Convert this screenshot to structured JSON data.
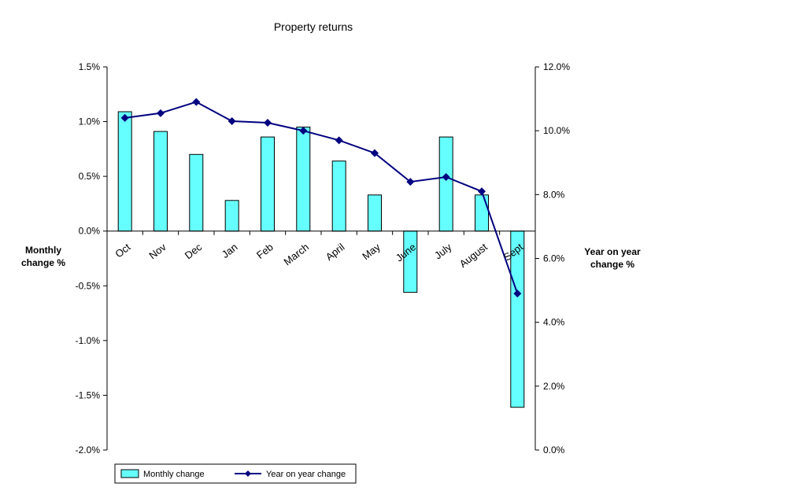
{
  "chart_data": {
    "type": "bar",
    "title": "Property returns",
    "categories": [
      "Oct",
      "Nov",
      "Dec",
      "Jan",
      "Feb",
      "March",
      "April",
      "May",
      "June",
      "July",
      "August",
      "Sept"
    ],
    "ylabel_left": [
      "Monthly",
      "change %"
    ],
    "ylabel_right": [
      "Year on year",
      "change %"
    ],
    "ylim_left": [
      -2.0,
      1.5
    ],
    "ylim_right": [
      0.0,
      12.0
    ],
    "left_ticks": [
      "1.5%",
      "1.0%",
      "0.5%",
      "0.0%",
      "-0.5%",
      "-1.0%",
      "-1.5%",
      "-2.0%"
    ],
    "left_tick_values": [
      1.5,
      1.0,
      0.5,
      0.0,
      -0.5,
      -1.0,
      -1.5,
      -2.0
    ],
    "right_ticks": [
      "12.0%",
      "10.0%",
      "8.0%",
      "6.0%",
      "4.0%",
      "2.0%",
      "0.0%"
    ],
    "right_tick_values": [
      12.0,
      10.0,
      8.0,
      6.0,
      4.0,
      2.0,
      0.0
    ],
    "grid": false,
    "legend_position": "bottom-left",
    "series": [
      {
        "name": "Monthly change",
        "type": "bar",
        "axis": "left",
        "color": "#66FFFF",
        "values": [
          1.09,
          0.91,
          0.7,
          0.28,
          0.86,
          0.95,
          0.64,
          0.33,
          -0.56,
          0.86,
          0.33,
          -1.61
        ]
      },
      {
        "name": "Year on year change",
        "type": "line",
        "axis": "right",
        "color": "#000080",
        "values": [
          10.4,
          10.55,
          10.9,
          10.3,
          10.25,
          10.0,
          9.7,
          9.3,
          8.4,
          8.55,
          8.1,
          4.9
        ]
      }
    ]
  }
}
